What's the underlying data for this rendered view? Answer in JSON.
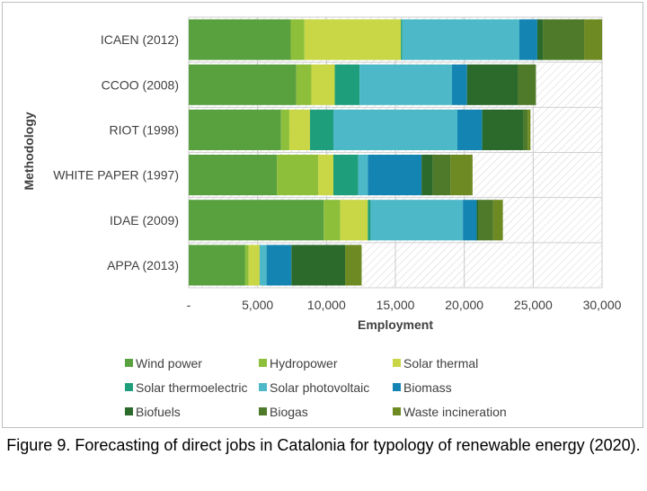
{
  "caption": "Figure 9. Forecasting of direct jobs in Catalonia for typology of renewable energy (2020).",
  "chart_data": {
    "type": "bar",
    "orientation": "horizontal",
    "stacked": true,
    "title": "",
    "xlabel": "Employment",
    "ylabel": "Methodology",
    "xlim": [
      0,
      30000
    ],
    "x_ticks": [
      "-",
      "5,000",
      "10,000",
      "15,000",
      "20,000",
      "25,000",
      "30,000"
    ],
    "x_tick_values": [
      0,
      5000,
      10000,
      15000,
      20000,
      25000,
      30000
    ],
    "grid": "vertical",
    "background_pattern": "diagonal hatch",
    "legend_position": "bottom",
    "categories": [
      "ICAEN (2012)",
      "CCOO (2008)",
      "RIOT (1998)",
      "WHITE PAPER (1997)",
      "IDAE (2009)",
      "APPA (2013)"
    ],
    "series": [
      {
        "name": "Wind power",
        "color": "#59a03f",
        "values": [
          7400,
          7800,
          6700,
          6400,
          9800,
          4100
        ]
      },
      {
        "name": "Hydropower",
        "color": "#8dbf3a",
        "values": [
          1000,
          1100,
          600,
          3000,
          1200,
          250
        ]
      },
      {
        "name": "Solar thermal",
        "color": "#c9d645",
        "values": [
          7000,
          1700,
          1500,
          1100,
          2000,
          800
        ]
      },
      {
        "name": "Solar thermoelectric",
        "color": "#1f9e7c",
        "values": [
          100,
          1800,
          1700,
          1800,
          200,
          0
        ]
      },
      {
        "name": "Solar photovoltaic",
        "color": "#4db8c8",
        "values": [
          8500,
          6700,
          9000,
          700,
          6700,
          500
        ]
      },
      {
        "name": "Biomass",
        "color": "#1485b3",
        "values": [
          1300,
          1100,
          1800,
          3900,
          1000,
          1800
        ]
      },
      {
        "name": "Biofuels",
        "color": "#2c6a2c",
        "values": [
          400,
          3700,
          3000,
          800,
          100,
          3900
        ]
      },
      {
        "name": "Biogas",
        "color": "#4f7a2a",
        "values": [
          3000,
          1300,
          300,
          1300,
          1100,
          0
        ]
      },
      {
        "name": "Waste incineration",
        "color": "#6e8a23",
        "values": [
          1300,
          0,
          200,
          1600,
          700,
          1200
        ]
      }
    ]
  }
}
